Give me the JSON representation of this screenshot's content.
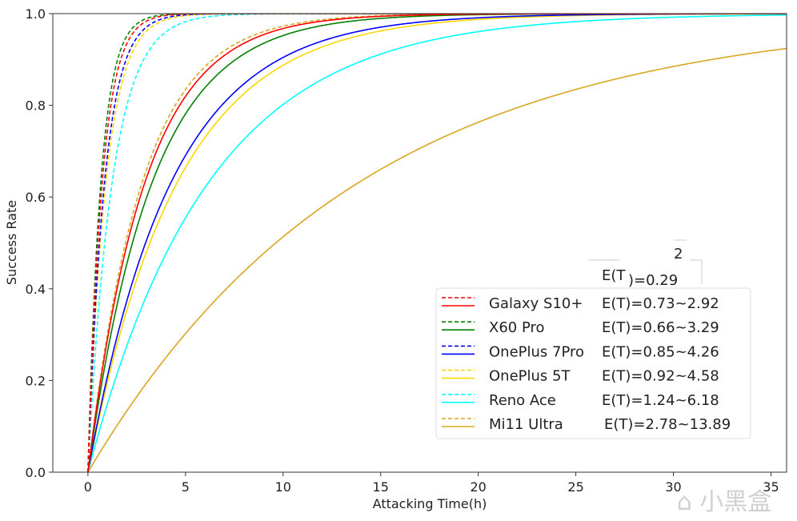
{
  "chart_data": {
    "type": "line",
    "title": "",
    "xlabel": "Attacking Time(h)",
    "ylabel": "Success Rate",
    "xlim": [
      -1.8,
      35.8
    ],
    "ylim": [
      0,
      1.0
    ],
    "xticks": [
      0,
      5,
      10,
      15,
      20,
      25,
      30,
      35
    ],
    "yticks": [
      0.0,
      0.2,
      0.4,
      0.6,
      0.8,
      1.0
    ],
    "ytick_labels": [
      "0.0",
      "0.2",
      "0.4",
      "0.6",
      "0.8",
      "1.0"
    ],
    "grid": false,
    "model": "success = 1 - exp(-t / E(T)); dashed uses lower E(T), solid uses upper E(T)",
    "legend_position": "center-right",
    "series": [
      {
        "name": "Galaxy S10+",
        "etext": "E(T)=0.73~2.92",
        "color": "#ff0000",
        "e_low": 0.73,
        "e_high": 2.92
      },
      {
        "name": "X60 Pro",
        "etext": "E(T)=0.66~3.29",
        "color": "#008000",
        "e_low": 0.66,
        "e_high": 3.29
      },
      {
        "name": "OnePlus 7Pro",
        "etext": "E(T)=0.85~4.26",
        "color": "#0000ff",
        "e_low": 0.85,
        "e_high": 4.26
      },
      {
        "name": "OnePlus 5T",
        "etext": "E(T)=0.92~4.58",
        "color": "#ffd700",
        "e_low": 0.92,
        "e_high": 4.58
      },
      {
        "name": "Reno Ace",
        "etext": "E(T)=1.24~6.18",
        "color": "#00ffff",
        "e_low": 1.24,
        "e_high": 6.18
      },
      {
        "name": "Mi11 Ultra",
        "etext": "E(T)=2.78~13.89",
        "color": "#daa520",
        "e_low": 2.78,
        "e_high": 13.89
      }
    ],
    "artifact_texts": [
      "2",
      "E(T",
      ")=0.29"
    ]
  },
  "watermark": "小黑盒"
}
